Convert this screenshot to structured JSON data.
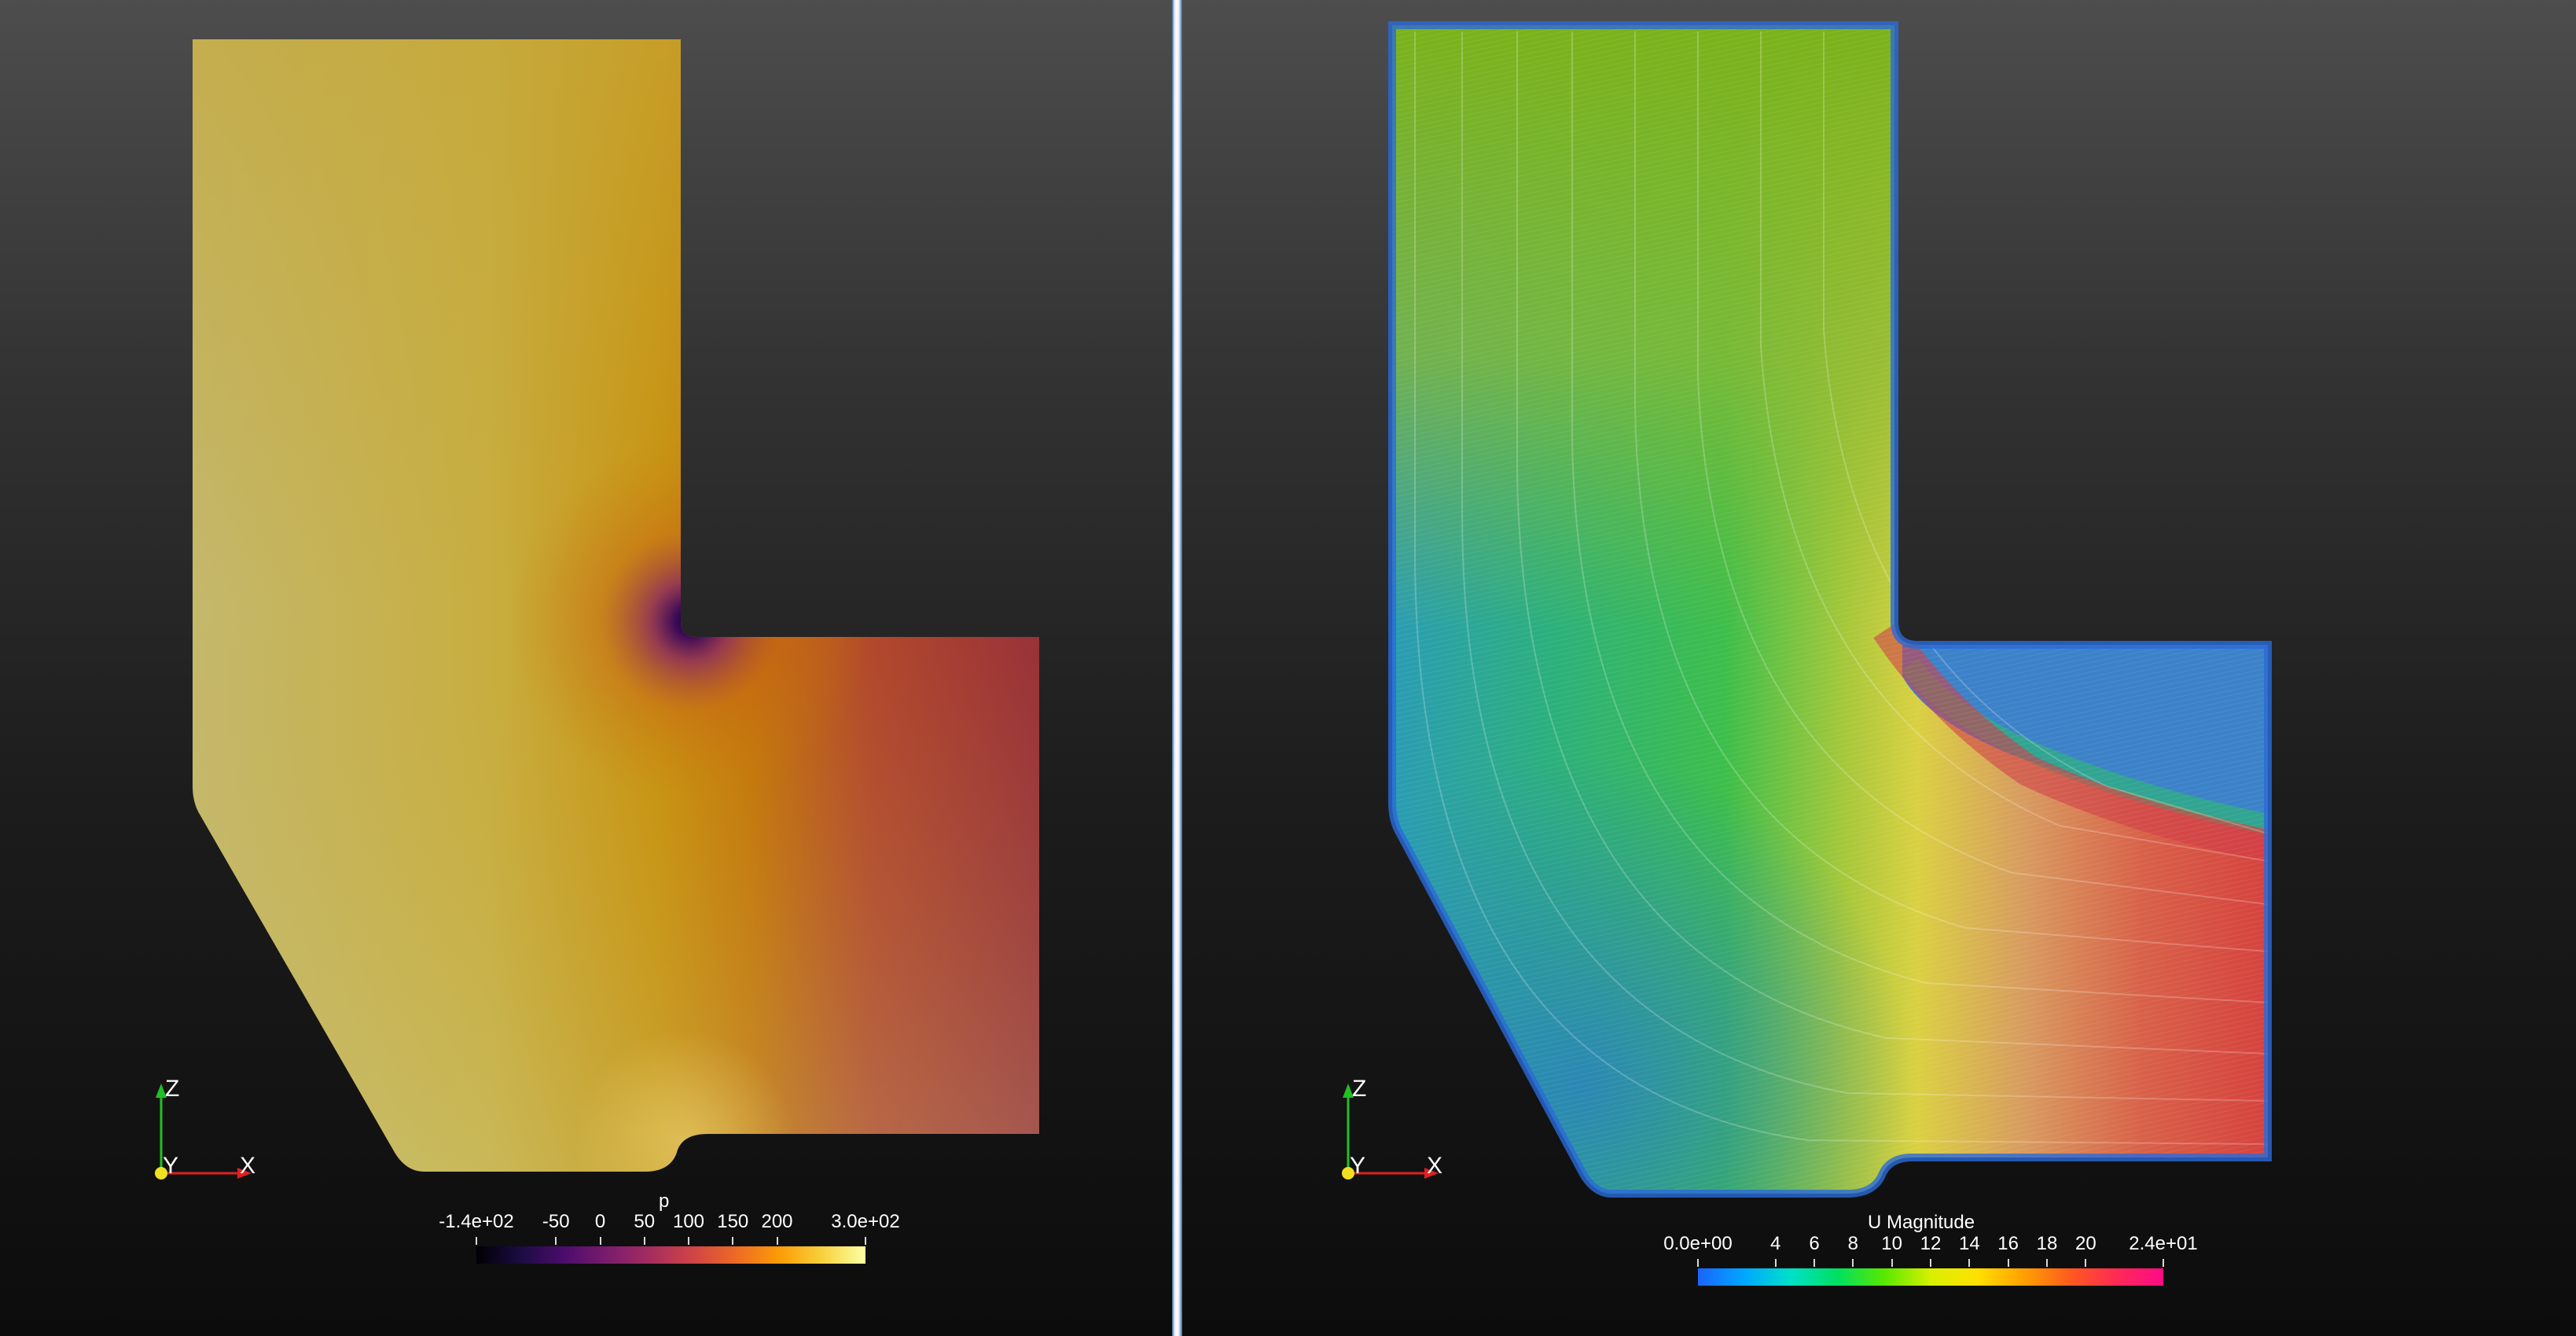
{
  "views": {
    "left": {
      "field_name": "pressure",
      "legend": {
        "title": "p",
        "tick_labels": [
          "-1.4e+02",
          "-50",
          "0",
          "50",
          "100",
          "150",
          "200",
          "3.0e+02"
        ],
        "tick_values": [
          -140,
          -50,
          0,
          50,
          100,
          150,
          200,
          300
        ],
        "range": [
          -140,
          300
        ],
        "colormap": "inferno",
        "colormap_stops": [
          "#000004",
          "#1b0c41",
          "#4a0c6b",
          "#781c6d",
          "#a52c60",
          "#cf4446",
          "#ed6925",
          "#fb9b06",
          "#f7d13d",
          "#fcffa4"
        ]
      },
      "orientation_axes": {
        "x_label": "X",
        "y_label": "Y",
        "z_label": "Z"
      }
    },
    "right": {
      "field_name": "velocity magnitude",
      "legend": {
        "title": "U Magnitude",
        "tick_labels": [
          "0.0e+00",
          "4",
          "6",
          "8",
          "10",
          "12",
          "14",
          "16",
          "18",
          "20",
          "2.4e+01"
        ],
        "tick_values": [
          0,
          4,
          6,
          8,
          10,
          12,
          14,
          16,
          18,
          20,
          24
        ],
        "range": [
          0,
          24
        ],
        "colormap": "jet-like",
        "colormap_stops": [
          "#1a64ff",
          "#00a8ff",
          "#00e0c8",
          "#00e060",
          "#58e800",
          "#d8f000",
          "#ffe000",
          "#ffa000",
          "#ff5a1e",
          "#ff2a55",
          "#ff0a86"
        ]
      },
      "orientation_axes": {
        "x_label": "X",
        "y_label": "Y",
        "z_label": "Z"
      }
    }
  },
  "colors": {
    "background_top": "#4d4d4d",
    "background_bottom": "#0c0c0c",
    "splitter": "#dfe7f1",
    "pressure_high": "#c8c070",
    "pressure_mid": "#c58012",
    "pressure_low": "#983039",
    "velocity_slow": "#2b6cd6",
    "velocity_mid": "#d8d438",
    "velocity_fast": "#d84040"
  }
}
